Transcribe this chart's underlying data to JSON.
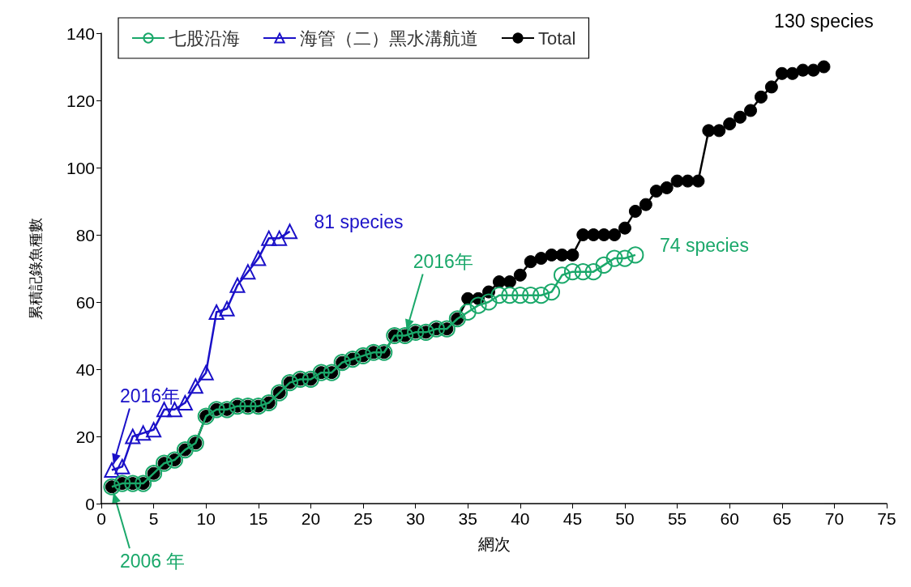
{
  "chart_data": {
    "type": "line",
    "xlabel": "網次",
    "ylabel": "累積記錄魚種數",
    "xlim": [
      0,
      75
    ],
    "xticks": [
      0,
      5,
      10,
      15,
      20,
      25,
      30,
      35,
      40,
      45,
      50,
      55,
      60,
      65,
      70,
      75
    ],
    "ylim": [
      0,
      140
    ],
    "yticks": [
      0,
      20,
      40,
      60,
      80,
      100,
      120,
      140
    ],
    "grid": false,
    "legend": "top left",
    "series": [
      {
        "name": "七股沿海",
        "color": "#1aa86a",
        "marker": "circle",
        "x": [
          1,
          2,
          3,
          4,
          5,
          6,
          7,
          8,
          9,
          10,
          11,
          12,
          13,
          14,
          15,
          16,
          17,
          18,
          19,
          20,
          21,
          22,
          23,
          24,
          25,
          26,
          27,
          28,
          29,
          30,
          31,
          32,
          33,
          34,
          35,
          36,
          37,
          38,
          39,
          40,
          41,
          42,
          43,
          44,
          45,
          46,
          47,
          48,
          49,
          50,
          51
        ],
        "values": [
          5,
          6,
          6,
          6,
          9,
          12,
          13,
          16,
          18,
          26,
          28,
          28,
          29,
          29,
          29,
          30,
          33,
          36,
          37,
          37,
          39,
          39,
          42,
          43,
          44,
          45,
          45,
          50,
          50,
          51,
          51,
          52,
          52,
          55,
          57,
          59,
          60,
          62,
          62,
          62,
          62,
          62,
          63,
          68,
          69,
          69,
          69,
          71,
          73,
          73,
          74
        ]
      },
      {
        "name": "海管（二）黑水溝航道",
        "color": "#1a10c8",
        "marker": "triangle",
        "x": [
          1,
          2,
          3,
          4,
          5,
          6,
          7,
          8,
          9,
          10,
          11,
          12,
          13,
          14,
          15,
          16,
          17,
          18
        ],
        "values": [
          10,
          11,
          20,
          21,
          22,
          28,
          28,
          30,
          35,
          39,
          57,
          58,
          65,
          69,
          73,
          79,
          79,
          81
        ]
      },
      {
        "name": "Total",
        "color": "#000000",
        "marker": "circle",
        "x": [
          1,
          2,
          3,
          4,
          5,
          6,
          7,
          8,
          9,
          10,
          11,
          12,
          13,
          14,
          15,
          16,
          17,
          18,
          19,
          20,
          21,
          22,
          23,
          24,
          25,
          26,
          27,
          28,
          29,
          30,
          31,
          32,
          33,
          34,
          35,
          36,
          37,
          38,
          39,
          40,
          41,
          42,
          43,
          44,
          45,
          46,
          47,
          48,
          49,
          50,
          51,
          52,
          53,
          54,
          55,
          56,
          57,
          58,
          59,
          60,
          61,
          62,
          63,
          64,
          65,
          66,
          67,
          68,
          69
        ],
        "values": [
          5,
          6,
          6,
          6,
          9,
          12,
          13,
          16,
          18,
          26,
          28,
          28,
          29,
          29,
          29,
          30,
          33,
          36,
          37,
          37,
          39,
          39,
          42,
          43,
          44,
          45,
          45,
          50,
          50,
          51,
          51,
          52,
          52,
          55,
          61,
          61,
          63,
          66,
          66,
          68,
          72,
          73,
          74,
          74,
          74,
          80,
          80,
          80,
          80,
          82,
          87,
          89,
          93,
          94,
          96,
          96,
          96,
          111,
          111,
          113,
          115,
          117,
          121,
          124,
          128,
          128,
          129,
          129,
          130
        ]
      }
    ],
    "annotations": [
      {
        "text": "130 species",
        "x": 69,
        "y": 130
      },
      {
        "text": "81 species",
        "x": 18,
        "y": 81
      },
      {
        "text": "74 species",
        "x": 51,
        "y": 74
      },
      {
        "text": "2016年",
        "x": 1,
        "y": 10
      },
      {
        "text": "2016年",
        "x": 29,
        "y": 50
      },
      {
        "text": "2006 年",
        "x": 1,
        "y": 5
      }
    ]
  }
}
